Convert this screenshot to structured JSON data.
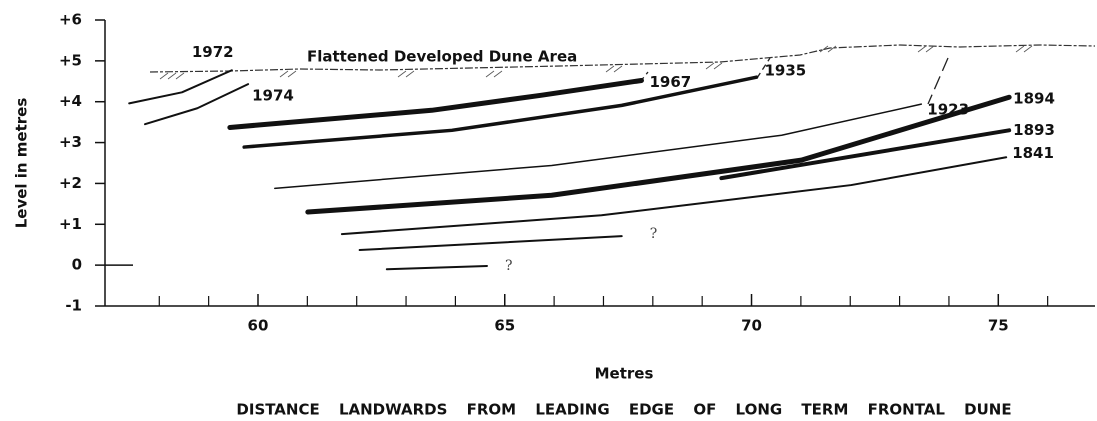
{
  "chart_data": {
    "type": "line",
    "y_label": "Level in metres",
    "x_label": "Metres",
    "x_caption": "DISTANCE LANDWARDS FROM LEADING EDGE OF LONG TERM FRONTAL DUNE",
    "surface_label": "Flattened Developed Dune Area",
    "xlim": [
      56.9,
      77
    ],
    "ylim": [
      -1,
      6
    ],
    "xticks": [
      60,
      65,
      70,
      75
    ],
    "xminor_ticks": [
      58,
      59,
      61,
      62,
      63,
      64,
      66,
      67,
      68,
      69,
      71,
      72,
      73,
      74,
      76
    ],
    "yticks": [
      {
        "value": 6,
        "label": "+6"
      },
      {
        "value": 5,
        "label": "+5"
      },
      {
        "value": 4,
        "label": "+4"
      },
      {
        "value": 3,
        "label": "+3"
      },
      {
        "value": 2,
        "label": "+2"
      },
      {
        "value": 1,
        "label": "+1"
      },
      0,
      -1
    ],
    "color": "#111111",
    "series": [
      {
        "name": "1972",
        "line_width": 2,
        "x": [
          57.39,
          58.46,
          59.47
        ],
        "values": [
          3.96,
          4.23,
          4.77
        ]
      },
      {
        "name": "1974",
        "line_width": 2,
        "x": [
          57.71,
          58.77,
          59.8
        ],
        "values": [
          3.45,
          3.84,
          4.43
        ]
      },
      {
        "name": "1967",
        "line_width": 5,
        "x": [
          59.43,
          63.52,
          65.75,
          67.77
        ],
        "values": [
          3.37,
          3.79,
          4.16,
          4.52
        ]
      },
      {
        "name": "1935",
        "line_width": 3.5,
        "x": [
          59.72,
          63.93,
          67.37,
          70.1
        ],
        "values": [
          2.89,
          3.3,
          3.91,
          4.6
        ]
      },
      {
        "name": "1923",
        "line_width": 1.5,
        "x": [
          60.34,
          65.95,
          70.61,
          73.44
        ],
        "values": [
          1.88,
          2.44,
          3.18,
          3.94
        ]
      },
      {
        "name": "1894",
        "line_width": 5,
        "x": [
          61.01,
          65.95,
          71.01,
          75.22
        ],
        "values": [
          1.3,
          1.71,
          2.57,
          4.11
        ]
      },
      {
        "name": "1893",
        "line_width": 4,
        "x": [
          69.39,
          75.22
        ],
        "values": [
          2.13,
          3.3
        ]
      },
      {
        "name": "1841",
        "line_width": 2,
        "x": [
          61.7,
          66.96,
          72.02,
          75.16
        ],
        "values": [
          0.76,
          1.22,
          1.96,
          2.64
        ]
      },
      {
        "line_width": 2,
        "x": [
          62.06,
          67.37
        ],
        "values": [
          0.37,
          0.71
        ],
        "note": "?"
      },
      {
        "line_width": 2,
        "x": [
          62.61,
          64.64
        ],
        "values": [
          -0.1,
          -0.02
        ],
        "note": "?"
      }
    ]
  }
}
